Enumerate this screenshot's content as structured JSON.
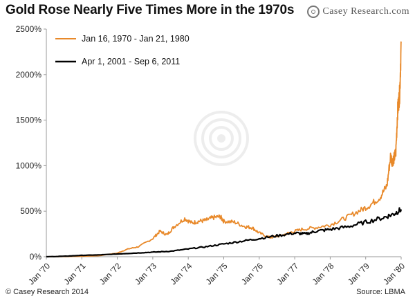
{
  "header": {
    "title": "Gold Rose Nearly Five Times More in the 1970s",
    "brand": "Casey Research.com",
    "brand_icon": "target-icon"
  },
  "footer": {
    "copyright": "© Casey Research 2014",
    "source": "Source: LBMA"
  },
  "colors": {
    "series_1970s": "#e8892a",
    "series_2000s": "#000000",
    "axis": "#999999"
  },
  "chart_data": {
    "type": "line",
    "title": "Gold Rose Nearly Five Times More in the 1970s",
    "xlabel": "",
    "ylabel": "",
    "ylim": [
      0,
      2500
    ],
    "y_ticks": [
      0,
      500,
      1000,
      1500,
      2000,
      2500
    ],
    "y_tick_labels": [
      "0%",
      "500%",
      "1000%",
      "1500%",
      "2000%",
      "2500%"
    ],
    "x_range": [
      0,
      10
    ],
    "x_ticks": [
      0,
      1,
      2,
      3,
      4,
      5,
      6,
      7,
      8,
      9,
      10
    ],
    "x_tick_labels": [
      "Jan '70",
      "Jan '71",
      "Jan '72",
      "Jan '73",
      "Jan '74",
      "Jan '75",
      "Jan '76",
      "Jan '77",
      "Jan '78",
      "Jan '79",
      "Jan '80"
    ],
    "grid": false,
    "legend_position": "top-left",
    "series": [
      {
        "name": "Jan 16, 1970 - Jan 21, 1980",
        "color": "#e8892a",
        "x": [
          0,
          0.5,
          1,
          1.5,
          2,
          2.3,
          2.6,
          3,
          3.2,
          3.4,
          3.6,
          3.9,
          4.1,
          4.3,
          4.5,
          4.7,
          4.9,
          5,
          5.3,
          5.6,
          5.8,
          6,
          6.3,
          6.6,
          6.9,
          7.2,
          7.6,
          8,
          8.4,
          8.8,
          9.1,
          9.4,
          9.6,
          9.7,
          9.75,
          9.8,
          9.85,
          9.9,
          9.93,
          9.96,
          10
        ],
        "y": [
          0,
          2,
          5,
          12,
          40,
          85,
          110,
          200,
          280,
          240,
          330,
          420,
          370,
          390,
          400,
          430,
          440,
          390,
          380,
          330,
          320,
          260,
          210,
          230,
          270,
          300,
          320,
          350,
          420,
          500,
          560,
          650,
          780,
          1100,
          1050,
          1080,
          1150,
          1600,
          1700,
          1800,
          2350
        ]
      },
      {
        "name": "Apr 1, 2001 - Sep 6, 2011",
        "color": "#000000",
        "x": [
          0,
          0.5,
          1,
          1.5,
          2,
          2.5,
          3,
          3.5,
          4,
          4.5,
          5,
          5.5,
          6,
          6.5,
          7,
          7.3,
          7.6,
          8,
          8.5,
          9,
          9.5,
          9.8,
          10
        ],
        "y": [
          0,
          5,
          15,
          20,
          30,
          40,
          50,
          60,
          85,
          110,
          140,
          170,
          200,
          230,
          260,
          250,
          280,
          300,
          330,
          380,
          430,
          470,
          520
        ]
      }
    ]
  }
}
